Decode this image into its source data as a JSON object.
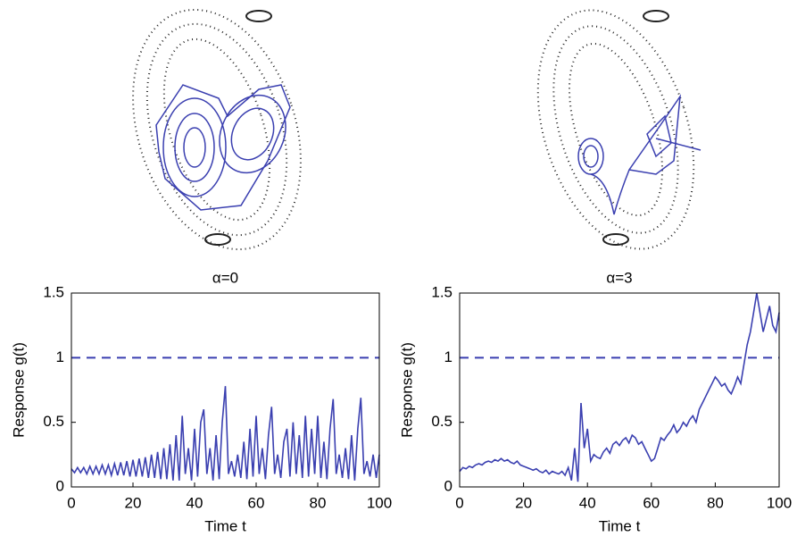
{
  "chart_data": [
    {
      "type": "line",
      "title": "α=0",
      "x_label": "Time t",
      "y_label": "Response g(t)",
      "xlim": [
        0,
        100
      ],
      "xticks": [
        0,
        20,
        40,
        60,
        80,
        100
      ],
      "ylim": [
        0,
        1.5
      ],
      "yticks": [
        0,
        0.5,
        1,
        1.5
      ],
      "threshold": 1,
      "series": [
        {
          "color": "#3a3fb0",
          "x": [
            0,
            1,
            2,
            3,
            4,
            5,
            6,
            7,
            8,
            9,
            10,
            11,
            12,
            13,
            14,
            15,
            16,
            17,
            18,
            19,
            20,
            21,
            22,
            23,
            24,
            25,
            26,
            27,
            28,
            29,
            30,
            31,
            32,
            33,
            34,
            35,
            36,
            37,
            38,
            39,
            40,
            41,
            42,
            43,
            44,
            45,
            46,
            47,
            48,
            49,
            50,
            51,
            52,
            53,
            54,
            55,
            56,
            57,
            58,
            59,
            60,
            61,
            62,
            63,
            64,
            65,
            66,
            67,
            68,
            69,
            70,
            71,
            72,
            73,
            74,
            75,
            76,
            77,
            78,
            79,
            80,
            81,
            82,
            83,
            84,
            85,
            86,
            87,
            88,
            89,
            90,
            91,
            92,
            93,
            94,
            95,
            96,
            97,
            98,
            99,
            100
          ],
          "values": [
            0.14,
            0.11,
            0.15,
            0.11,
            0.15,
            0.1,
            0.16,
            0.1,
            0.16,
            0.1,
            0.17,
            0.1,
            0.17,
            0.09,
            0.18,
            0.09,
            0.19,
            0.09,
            0.2,
            0.08,
            0.21,
            0.08,
            0.22,
            0.08,
            0.23,
            0.07,
            0.25,
            0.07,
            0.27,
            0.06,
            0.3,
            0.06,
            0.33,
            0.05,
            0.4,
            0.05,
            0.55,
            0.1,
            0.3,
            0.05,
            0.45,
            0.08,
            0.5,
            0.6,
            0.1,
            0.3,
            0.05,
            0.4,
            0.06,
            0.5,
            0.78,
            0.1,
            0.2,
            0.08,
            0.25,
            0.07,
            0.35,
            0.06,
            0.45,
            0.08,
            0.55,
            0.1,
            0.3,
            0.06,
            0.4,
            0.62,
            0.1,
            0.25,
            0.07,
            0.35,
            0.45,
            0.08,
            0.5,
            0.1,
            0.4,
            0.07,
            0.55,
            0.08,
            0.45,
            0.1,
            0.55,
            0.07,
            0.35,
            0.06,
            0.45,
            0.68,
            0.1,
            0.25,
            0.07,
            0.3,
            0.06,
            0.4,
            0.05,
            0.45,
            0.69,
            0.1,
            0.2,
            0.08,
            0.25,
            0.07,
            0.25
          ]
        }
      ]
    },
    {
      "type": "line",
      "title": "α=3",
      "x_label": "Time t",
      "y_label": "Response g(t)",
      "xlim": [
        0,
        100
      ],
      "xticks": [
        0,
        20,
        40,
        60,
        80,
        100
      ],
      "ylim": [
        0,
        1.5
      ],
      "yticks": [
        0,
        0.5,
        1,
        1.5
      ],
      "threshold": 1,
      "series": [
        {
          "color": "#3a3fb0",
          "x": [
            0,
            1,
            2,
            3,
            4,
            5,
            6,
            7,
            8,
            9,
            10,
            11,
            12,
            13,
            14,
            15,
            16,
            17,
            18,
            19,
            20,
            21,
            22,
            23,
            24,
            25,
            26,
            27,
            28,
            29,
            30,
            31,
            32,
            33,
            34,
            35,
            36,
            37,
            38,
            39,
            40,
            41,
            42,
            43,
            44,
            45,
            46,
            47,
            48,
            49,
            50,
            51,
            52,
            53,
            54,
            55,
            56,
            57,
            58,
            59,
            60,
            61,
            62,
            63,
            64,
            65,
            66,
            67,
            68,
            69,
            70,
            71,
            72,
            73,
            74,
            75,
            76,
            77,
            78,
            79,
            80,
            81,
            82,
            83,
            84,
            85,
            86,
            87,
            88,
            89,
            90,
            91,
            92,
            93,
            94,
            95,
            96,
            97,
            98,
            99,
            100
          ],
          "values": [
            0.12,
            0.15,
            0.14,
            0.16,
            0.15,
            0.17,
            0.18,
            0.17,
            0.19,
            0.2,
            0.19,
            0.21,
            0.2,
            0.22,
            0.2,
            0.21,
            0.19,
            0.18,
            0.2,
            0.17,
            0.16,
            0.15,
            0.14,
            0.13,
            0.14,
            0.12,
            0.11,
            0.13,
            0.1,
            0.12,
            0.11,
            0.1,
            0.12,
            0.09,
            0.15,
            0.05,
            0.3,
            0.04,
            0.65,
            0.3,
            0.45,
            0.2,
            0.25,
            0.23,
            0.22,
            0.27,
            0.3,
            0.26,
            0.33,
            0.35,
            0.32,
            0.36,
            0.38,
            0.34,
            0.4,
            0.38,
            0.33,
            0.35,
            0.3,
            0.25,
            0.2,
            0.22,
            0.3,
            0.38,
            0.36,
            0.4,
            0.43,
            0.48,
            0.42,
            0.45,
            0.5,
            0.47,
            0.52,
            0.55,
            0.5,
            0.6,
            0.65,
            0.7,
            0.75,
            0.8,
            0.85,
            0.82,
            0.78,
            0.8,
            0.75,
            0.72,
            0.78,
            0.85,
            0.8,
            0.95,
            1.1,
            1.2,
            1.35,
            1.5,
            1.35,
            1.2,
            1.3,
            1.4,
            1.25,
            1.2,
            1.35
          ]
        }
      ]
    }
  ]
}
